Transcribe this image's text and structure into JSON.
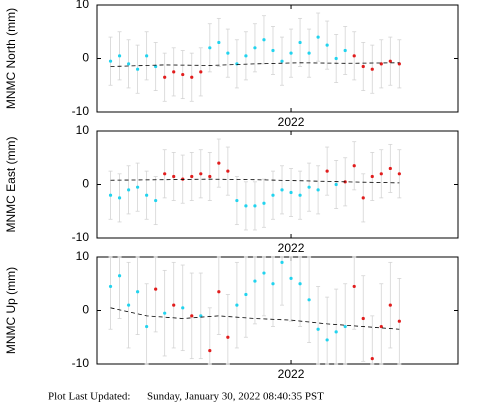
{
  "chart_data": [
    {
      "type": "scatter",
      "ylabel": "MNMC North (mm)",
      "xlim": [
        0,
        80
      ],
      "ylim": [
        -10,
        10
      ],
      "yticks": [
        -10,
        0,
        10
      ],
      "xticks": [
        {
          "value": 43,
          "label": "2022"
        }
      ],
      "series": [
        {
          "color": "#22d3ee",
          "mark": "point",
          "error": 4.5,
          "x": [
            3,
            5,
            7,
            9,
            11,
            13,
            25,
            27,
            29,
            31,
            33,
            35,
            37,
            39,
            41,
            43,
            45,
            47,
            49,
            51,
            53,
            55
          ],
          "values": [
            -0.5,
            0.5,
            -1,
            -2,
            0.5,
            -1.5,
            2,
            3,
            1,
            -1,
            0.5,
            2,
            3.5,
            1.5,
            -0.5,
            1,
            3,
            1,
            4,
            2.5,
            0,
            1.5
          ]
        },
        {
          "color": "#e11d1d",
          "mark": "point",
          "error": 4.5,
          "x": [
            15,
            17,
            19,
            21,
            23,
            57,
            59,
            61,
            63,
            65,
            67
          ],
          "values": [
            -3.5,
            -2.5,
            -3,
            -3.5,
            -2.5,
            0.5,
            -1.5,
            -2,
            -1,
            -0.5,
            -1
          ]
        },
        {
          "color": "#000000",
          "mark": "line",
          "style": "dashed",
          "x": [
            3,
            15,
            25,
            35,
            45,
            55,
            67
          ],
          "values": [
            -1.5,
            -1.2,
            -1.3,
            -1,
            -0.8,
            -0.9,
            -0.8
          ]
        }
      ]
    },
    {
      "type": "scatter",
      "ylabel": "MNMC East (mm)",
      "xlim": [
        0,
        80
      ],
      "ylim": [
        -10,
        10
      ],
      "yticks": [
        -10,
        0,
        10
      ],
      "xticks": [
        {
          "value": 43,
          "label": "2022"
        }
      ],
      "series": [
        {
          "color": "#22d3ee",
          "mark": "point",
          "error": 4.5,
          "x": [
            3,
            5,
            7,
            9,
            11,
            13,
            31,
            33,
            35,
            37,
            39,
            41,
            43,
            45,
            47,
            49,
            53
          ],
          "values": [
            -2,
            -2.5,
            -1,
            -0.5,
            -2,
            -3,
            -3,
            -4,
            -4,
            -3.5,
            -2,
            -1,
            -1.5,
            -2,
            -0.5,
            -1,
            0
          ]
        },
        {
          "color": "#e11d1d",
          "mark": "point",
          "error": 4.5,
          "x": [
            15,
            17,
            19,
            21,
            23,
            25,
            27,
            29,
            51,
            55,
            57,
            59,
            61,
            63,
            65,
            67
          ],
          "values": [
            2,
            1.5,
            1,
            1.5,
            2,
            1.5,
            4,
            2.5,
            2.5,
            0.5,
            3.5,
            -2.5,
            1.5,
            2,
            3,
            2
          ]
        },
        {
          "color": "#000000",
          "mark": "line",
          "style": "dashed",
          "x": [
            3,
            15,
            25,
            35,
            45,
            55,
            67
          ],
          "values": [
            0.8,
            0.9,
            1,
            0.9,
            0.7,
            0.5,
            0.3
          ]
        }
      ]
    },
    {
      "type": "scatter",
      "ylabel": "MNMC Up (mm)",
      "xlim": [
        0,
        80
      ],
      "ylim": [
        -10,
        10
      ],
      "yticks": [
        -10,
        0,
        10
      ],
      "xticks": [
        {
          "value": 43,
          "label": "2022"
        }
      ],
      "series": [
        {
          "color": "#22d3ee",
          "mark": "point",
          "error": 8,
          "x": [
            3,
            5,
            7,
            9,
            11,
            15,
            19,
            23,
            31,
            33,
            35,
            37,
            39,
            41,
            43,
            45,
            47,
            49,
            51,
            53,
            55
          ],
          "values": [
            4.5,
            6.5,
            1,
            3.5,
            -3,
            -0.5,
            0.5,
            -1,
            1,
            3,
            5.5,
            7,
            5,
            9,
            6,
            5,
            2,
            -3.5,
            -5.5,
            -4,
            -3
          ]
        },
        {
          "color": "#e11d1d",
          "mark": "point",
          "error": 8,
          "x": [
            13,
            17,
            21,
            25,
            27,
            29,
            57,
            59,
            61,
            63,
            65,
            67
          ],
          "values": [
            4,
            1,
            -1,
            -7.5,
            3.5,
            -5,
            4.5,
            -1.5,
            -9,
            -3,
            1,
            -2
          ]
        },
        {
          "color": "#000000",
          "mark": "line",
          "style": "dashed",
          "x": [
            3,
            11,
            19,
            27,
            35,
            43,
            51,
            59,
            67
          ],
          "values": [
            0.5,
            -1,
            -1.5,
            -1,
            -1.5,
            -1.8,
            -2.5,
            -3,
            -3.5
          ]
        }
      ]
    }
  ],
  "footer": {
    "label": "Plot Last Updated:",
    "date": "Sunday, January 30, 2022 08:40:35 PST"
  }
}
